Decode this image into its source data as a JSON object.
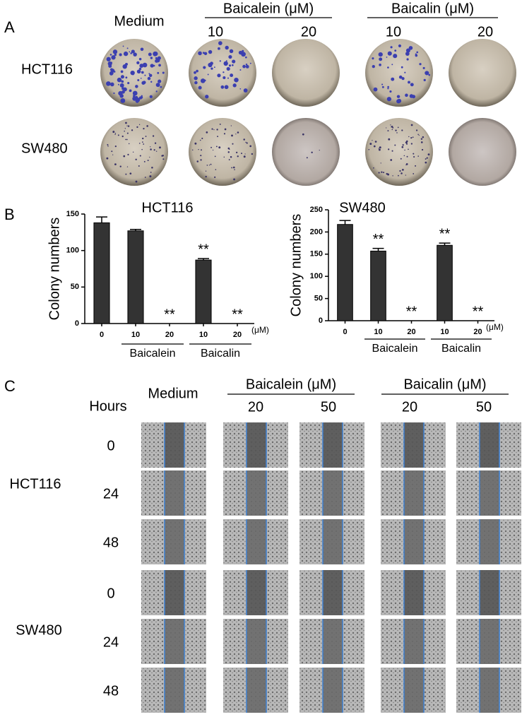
{
  "panel_a": {
    "label": "A",
    "header_medium": "Medium",
    "groups": [
      {
        "title": "Baicalein (μM)",
        "doses": [
          "10",
          "20"
        ]
      },
      {
        "title": "Baicalin (μM)",
        "doses": [
          "10",
          "20"
        ]
      }
    ],
    "rows": [
      "HCT116",
      "SW480"
    ]
  },
  "panel_b_label": "B",
  "chart_data": [
    {
      "type": "bar",
      "title": "HCT116",
      "y_label": "Colony numbers",
      "categories": [
        "0",
        "10",
        "20",
        "10",
        "20"
      ],
      "values": [
        138,
        127,
        0,
        87,
        0
      ],
      "errors": [
        8,
        2,
        0,
        2,
        0
      ],
      "significance": [
        null,
        null,
        "**",
        "**",
        "**"
      ],
      "color": "#333333",
      "ylim": [
        0,
        150
      ],
      "yticks": [
        0,
        50,
        100,
        150
      ],
      "unit": "(μM)",
      "groups": [
        "Baicalein",
        "Baicalin"
      ]
    },
    {
      "type": "bar",
      "title": "SW480",
      "y_label": "Colony numbers",
      "categories": [
        "0",
        "10",
        "20",
        "10",
        "20"
      ],
      "values": [
        217,
        157,
        0,
        170,
        0
      ],
      "errors": [
        9,
        6,
        0,
        5,
        0
      ],
      "significance": [
        null,
        "**",
        "**",
        "**",
        "**"
      ],
      "color": "#333333",
      "ylim": [
        0,
        250
      ],
      "yticks": [
        0,
        50,
        100,
        150,
        200,
        250
      ],
      "unit": "(μM)",
      "groups": [
        "Baicalein",
        "Baicalin"
      ]
    }
  ],
  "panel_c": {
    "label": "C",
    "hours_header": "Hours",
    "header_medium": "Medium",
    "groups": [
      {
        "title": "Baicalein (μM)",
        "doses": [
          "20",
          "50"
        ]
      },
      {
        "title": "Baicalin (μM)",
        "doses": [
          "20",
          "50"
        ]
      }
    ],
    "cell_lines": [
      {
        "name": "HCT116",
        "hours": [
          "0",
          "24",
          "48"
        ]
      },
      {
        "name": "SW480",
        "hours": [
          "0",
          "24",
          "48"
        ]
      }
    ]
  }
}
